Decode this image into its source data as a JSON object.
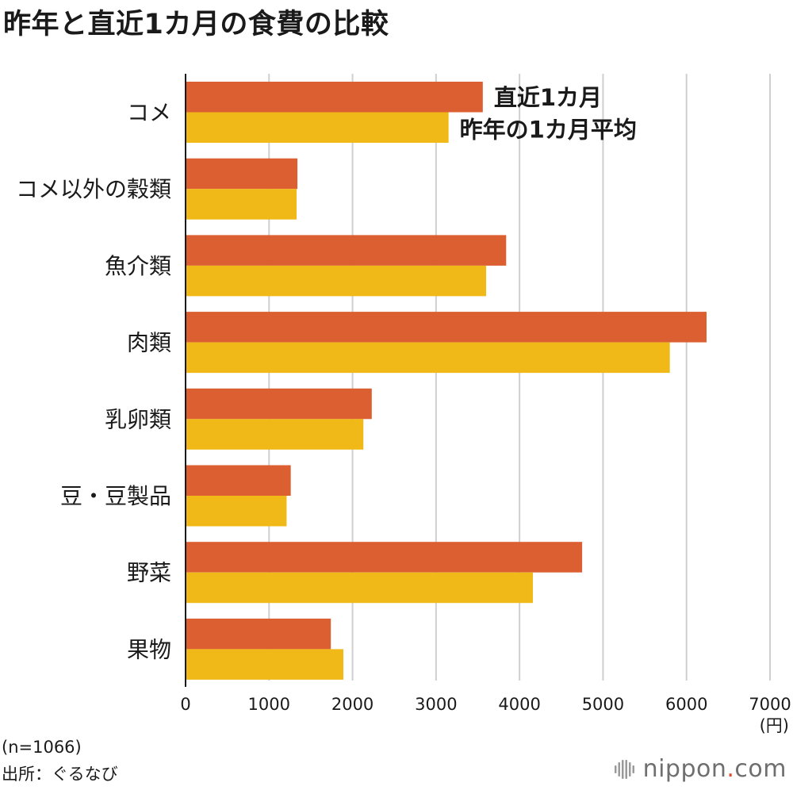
{
  "title": "昨年と直近1カ月の食費の比較",
  "footnote": {
    "sample": "(n=1066)",
    "source": "出所：ぐるなび"
  },
  "logo": {
    "name_before": "nippon",
    "name_dot": ".",
    "name_after": "com"
  },
  "chart_data": {
    "type": "bar",
    "orientation": "horizontal",
    "categories": [
      "コメ",
      "コメ以外の穀類",
      "魚介類",
      "肉類",
      "乳卵類",
      "豆・豆製品",
      "野菜",
      "果物"
    ],
    "series": [
      {
        "name": "直近1カ月",
        "color": "#db5f31",
        "values": [
          3560,
          1340,
          3840,
          6240,
          2230,
          1260,
          4750,
          1740
        ]
      },
      {
        "name": "昨年の1カ月平均",
        "color": "#f0b917",
        "values": [
          3150,
          1330,
          3600,
          5800,
          2130,
          1210,
          4160,
          1890
        ]
      }
    ],
    "xlim": [
      0,
      7000
    ],
    "xticks": [
      0,
      1000,
      2000,
      3000,
      4000,
      5000,
      6000,
      7000
    ],
    "xlabel": "(円)",
    "grid": true,
    "legend": "inline labels beside first category bars"
  }
}
